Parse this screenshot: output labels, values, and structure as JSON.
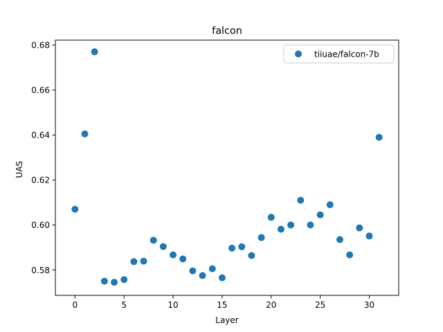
{
  "chart_data": {
    "type": "scatter",
    "title": "falcon",
    "xlabel": "Layer",
    "ylabel": "UAS",
    "xlim": [
      -2,
      33
    ],
    "ylim": [
      0.5687,
      0.6822
    ],
    "xticks": [
      0,
      5,
      10,
      15,
      20,
      25,
      30
    ],
    "yticks": [
      0.58,
      0.6,
      0.62,
      0.64,
      0.66,
      0.68
    ],
    "ytick_labels": [
      "0.58",
      "0.60",
      "0.62",
      "0.64",
      "0.66",
      "0.68"
    ],
    "legend_position": "top-right",
    "grid": false,
    "series": [
      {
        "name": "tiiuae/falcon-7b",
        "color": "#1f77b4",
        "x": [
          0,
          1,
          2,
          3,
          4,
          5,
          6,
          7,
          8,
          9,
          10,
          11,
          12,
          13,
          14,
          15,
          16,
          17,
          18,
          19,
          20,
          21,
          22,
          23,
          24,
          25,
          26,
          27,
          28,
          29,
          30,
          31
        ],
        "y": [
          0.607,
          0.6405,
          0.677,
          0.575,
          0.5745,
          0.5757,
          0.5837,
          0.5839,
          0.5932,
          0.5904,
          0.5867,
          0.5849,
          0.5796,
          0.5775,
          0.5805,
          0.5765,
          0.5897,
          0.5903,
          0.5864,
          0.5944,
          0.6034,
          0.5981,
          0.6,
          0.611,
          0.6,
          0.6045,
          0.609,
          0.5935,
          0.5867,
          0.5987,
          0.5951,
          0.639
        ]
      }
    ]
  }
}
